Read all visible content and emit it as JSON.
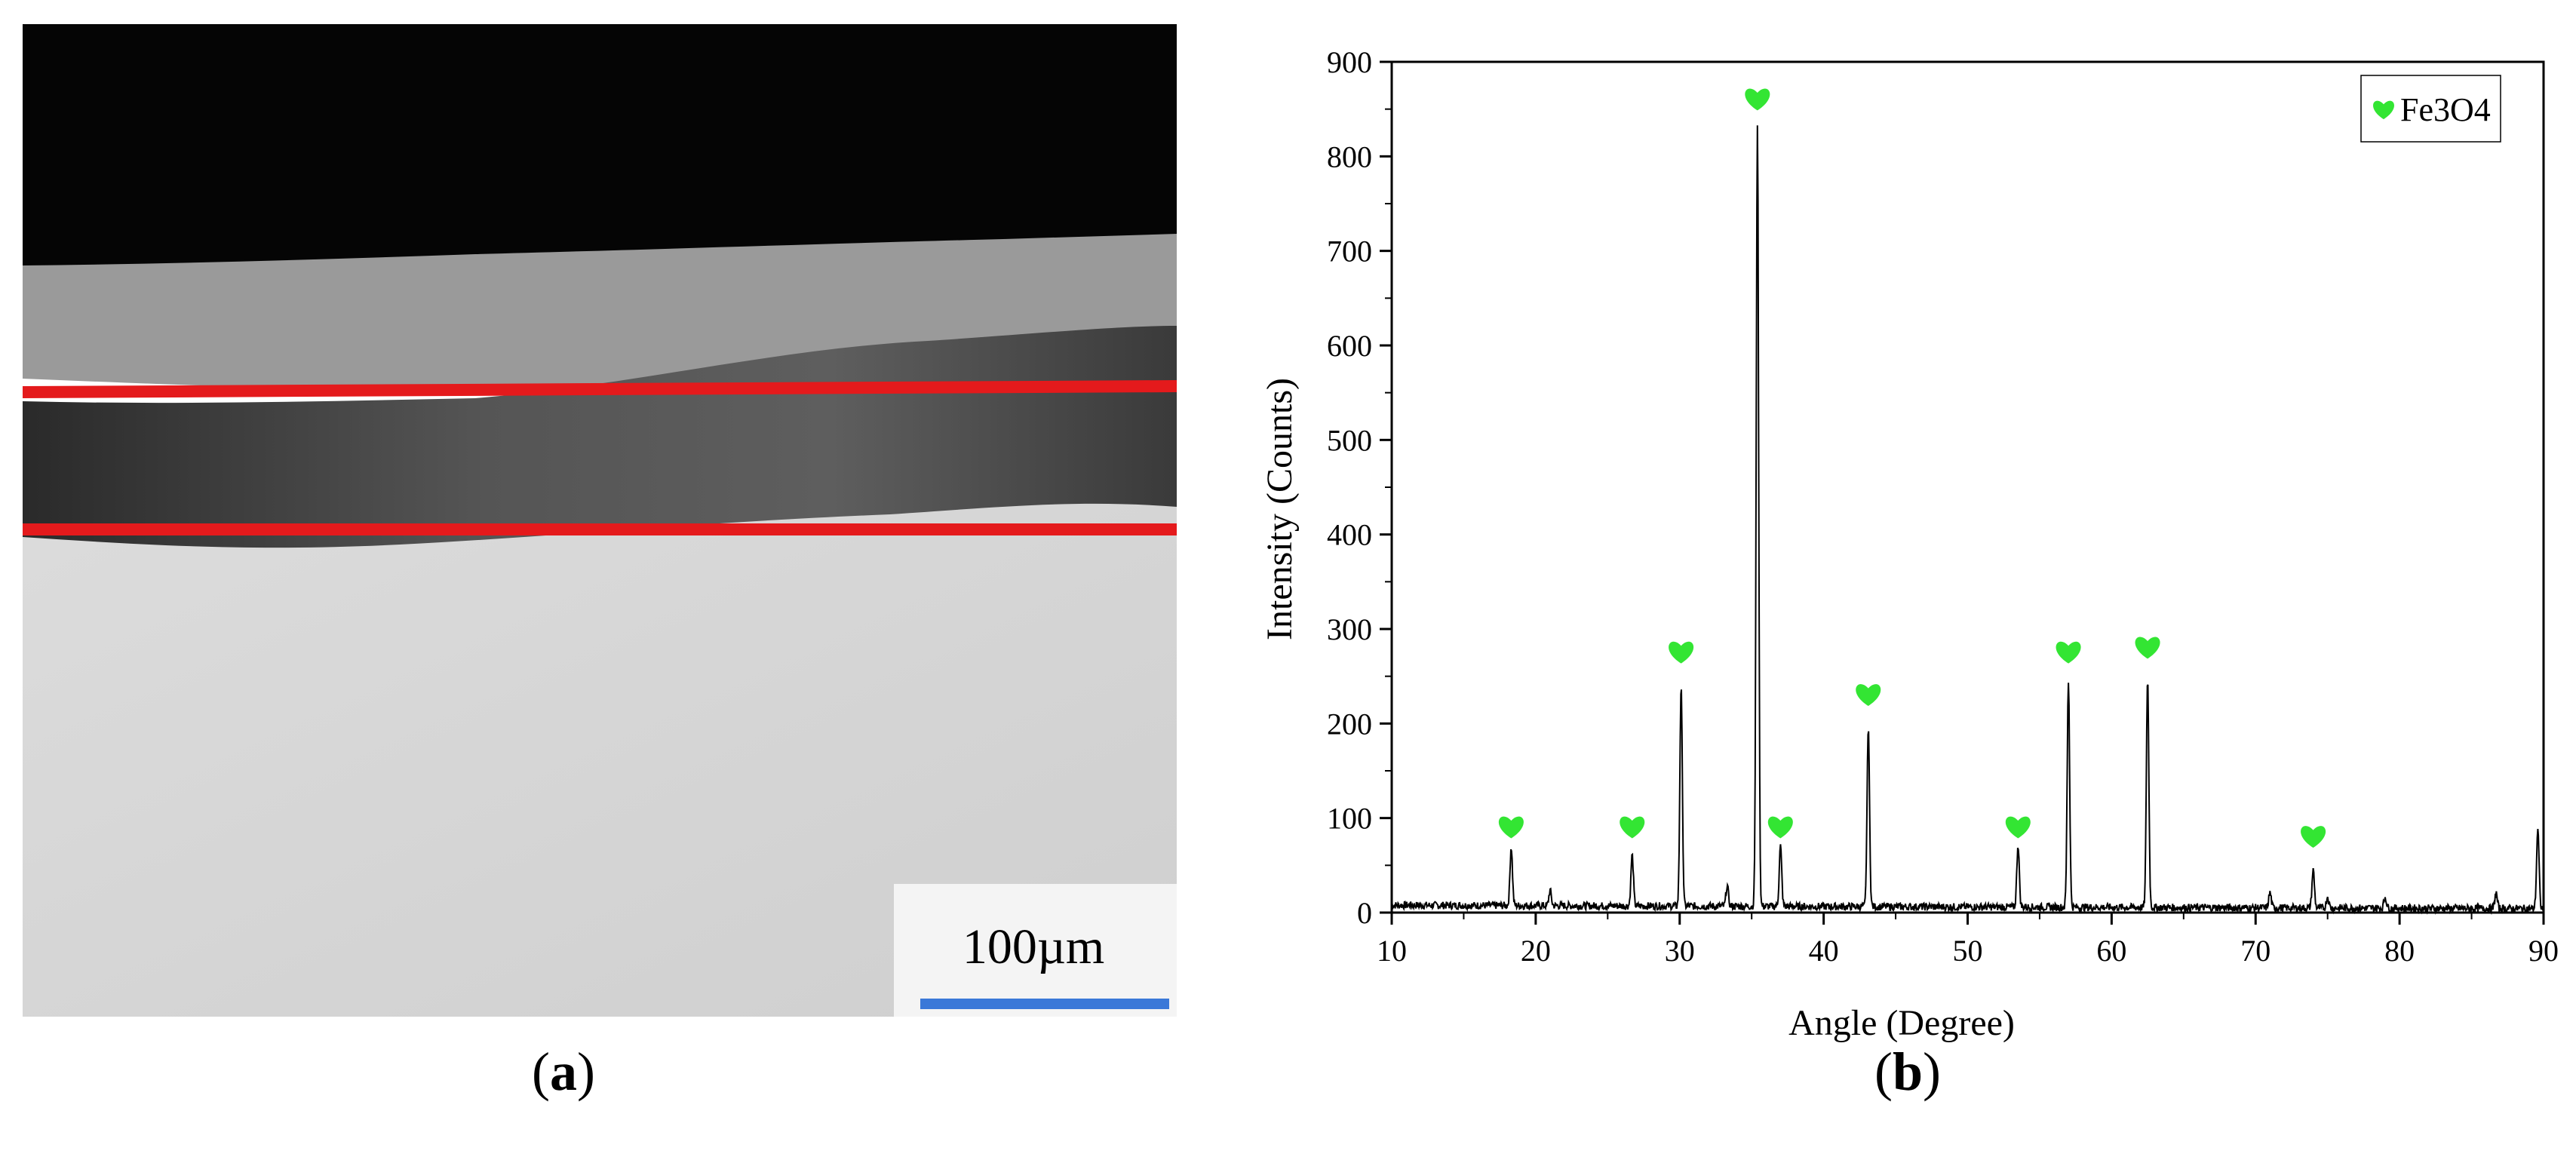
{
  "panel_a": {
    "label": "a",
    "scale_bar_text": "100µm",
    "colors": {
      "marker_lines": "#e41a1c",
      "scale_bar": "#3a78d8"
    }
  },
  "panel_b": {
    "label": "b",
    "chart_data": {
      "type": "line",
      "title": "",
      "xlabel": "Angle (Degree)",
      "ylabel": "Intensity (Counts)",
      "xlim": [
        10,
        90
      ],
      "ylim": [
        0,
        900
      ],
      "xticks": [
        10,
        20,
        30,
        40,
        50,
        60,
        70,
        80,
        90
      ],
      "yticks": [
        0,
        100,
        200,
        300,
        400,
        500,
        600,
        700,
        800,
        900
      ],
      "grid": false,
      "legend": {
        "position": "top-right",
        "entries": [
          {
            "symbol": "heart",
            "text": "Fe3O4",
            "color": "#33e533"
          }
        ]
      },
      "series": [
        {
          "color": "#000000",
          "peaks": [
            {
              "x": 18.3,
              "y": 68
            },
            {
              "x": 26.7,
              "y": 60
            },
            {
              "x": 30.1,
              "y": 238
            },
            {
              "x": 35.4,
              "y": 835
            },
            {
              "x": 37.0,
              "y": 70
            },
            {
              "x": 43.1,
              "y": 197
            },
            {
              "x": 53.5,
              "y": 72
            },
            {
              "x": 57.0,
              "y": 245
            },
            {
              "x": 62.5,
              "y": 248
            },
            {
              "x": 74.0,
              "y": 46
            }
          ],
          "minor_peaks": [
            {
              "x": 21.0,
              "y": 22
            },
            {
              "x": 33.3,
              "y": 28
            },
            {
              "x": 71.0,
              "y": 22
            },
            {
              "x": 75.0,
              "y": 18
            },
            {
              "x": 79.0,
              "y": 18
            },
            {
              "x": 86.7,
              "y": 22
            },
            {
              "x": 89.6,
              "y": 90
            }
          ],
          "baseline": 6
        }
      ],
      "annotations": [
        {
          "marker": "heart",
          "x": 18.3,
          "y": 90
        },
        {
          "marker": "heart",
          "x": 26.7,
          "y": 90
        },
        {
          "marker": "heart",
          "x": 30.1,
          "y": 275
        },
        {
          "marker": "heart",
          "x": 35.4,
          "y": 860
        },
        {
          "marker": "heart",
          "x": 37.0,
          "y": 90
        },
        {
          "marker": "heart",
          "x": 43.1,
          "y": 230
        },
        {
          "marker": "heart",
          "x": 53.5,
          "y": 90
        },
        {
          "marker": "heart",
          "x": 57.0,
          "y": 275
        },
        {
          "marker": "heart",
          "x": 62.5,
          "y": 280
        },
        {
          "marker": "heart",
          "x": 74.0,
          "y": 80
        }
      ]
    }
  }
}
